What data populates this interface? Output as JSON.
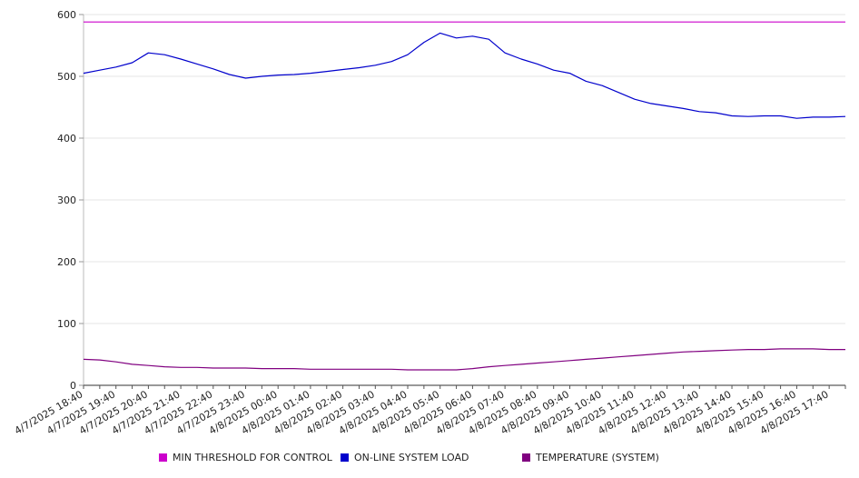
{
  "chart_data": {
    "type": "line",
    "title": "",
    "xlabel": "",
    "ylabel": "",
    "ylim": [
      0,
      600
    ],
    "y_ticks": [
      0,
      100,
      200,
      300,
      400,
      500,
      600
    ],
    "grid": "horizontal",
    "legend_position": "bottom",
    "x_tick_labels": [
      "4/7/2025 18:40",
      "4/7/2025 19:40",
      "4/7/2025 20:40",
      "4/7/2025 21:40",
      "4/7/2025 22:40",
      "4/7/2025 23:40",
      "4/8/2025 00:40",
      "4/8/2025 01:40",
      "4/8/2025 02:40",
      "4/8/2025 03:40",
      "4/8/2025 04:40",
      "4/8/2025 05:40",
      "4/8/2025 06:40",
      "4/8/2025 07:40",
      "4/8/2025 08:40",
      "4/8/2025 09:40",
      "4/8/2025 10:40",
      "4/8/2025 11:40",
      "4/8/2025 12:40",
      "4/8/2025 13:40",
      "4/8/2025 14:40",
      "4/8/2025 15:40",
      "4/8/2025 16:40",
      "4/8/2025 17:40"
    ],
    "x": [
      "4/7/2025 18:40",
      "4/7/2025 19:10",
      "4/7/2025 19:40",
      "4/7/2025 20:10",
      "4/7/2025 20:40",
      "4/7/2025 21:10",
      "4/7/2025 21:40",
      "4/7/2025 22:10",
      "4/7/2025 22:40",
      "4/7/2025 23:10",
      "4/7/2025 23:40",
      "4/8/2025 00:10",
      "4/8/2025 00:40",
      "4/8/2025 01:10",
      "4/8/2025 01:40",
      "4/8/2025 02:10",
      "4/8/2025 02:40",
      "4/8/2025 03:10",
      "4/8/2025 03:40",
      "4/8/2025 04:10",
      "4/8/2025 04:40",
      "4/8/2025 05:10",
      "4/8/2025 05:40",
      "4/8/2025 06:10",
      "4/8/2025 06:40",
      "4/8/2025 07:10",
      "4/8/2025 07:40",
      "4/8/2025 08:10",
      "4/8/2025 08:40",
      "4/8/2025 09:10",
      "4/8/2025 09:40",
      "4/8/2025 10:10",
      "4/8/2025 10:40",
      "4/8/2025 11:10",
      "4/8/2025 11:40",
      "4/8/2025 12:10",
      "4/8/2025 12:40",
      "4/8/2025 13:10",
      "4/8/2025 13:40",
      "4/8/2025 14:10",
      "4/8/2025 14:40",
      "4/8/2025 15:10",
      "4/8/2025 15:40",
      "4/8/2025 16:10",
      "4/8/2025 16:40",
      "4/8/2025 17:10",
      "4/8/2025 17:40",
      "4/8/2025 18:10"
    ],
    "series": [
      {
        "name": "MIN THRESHOLD FOR CONTROL",
        "color": "#cc00cc",
        "values": [
          588,
          588,
          588,
          588,
          588,
          588,
          588,
          588,
          588,
          588,
          588,
          588,
          588,
          588,
          588,
          588,
          588,
          588,
          588,
          588,
          588,
          588,
          588,
          588,
          588,
          588,
          588,
          588,
          588,
          588,
          588,
          588,
          588,
          588,
          588,
          588,
          588,
          588,
          588,
          588,
          588,
          588,
          588,
          588,
          588,
          588,
          588,
          588
        ]
      },
      {
        "name": "ON-LINE SYSTEM LOAD",
        "color": "#0000cc",
        "values": [
          505,
          510,
          515,
          522,
          538,
          535,
          528,
          520,
          512,
          503,
          497,
          500,
          502,
          503,
          505,
          508,
          511,
          514,
          518,
          524,
          535,
          555,
          570,
          562,
          565,
          560,
          538,
          528,
          520,
          510,
          505,
          492,
          485,
          474,
          463,
          456,
          452,
          448,
          443,
          441,
          436,
          435,
          436,
          436,
          432,
          434,
          434,
          435
        ]
      },
      {
        "name": "TEMPERATURE (SYSTEM)",
        "color": "#800080",
        "values": [
          42,
          41,
          38,
          34,
          32,
          30,
          29,
          29,
          28,
          28,
          28,
          27,
          27,
          27,
          26,
          26,
          26,
          26,
          26,
          26,
          25,
          25,
          25,
          25,
          27,
          30,
          32,
          34,
          36,
          38,
          40,
          42,
          44,
          46,
          48,
          50,
          52,
          54,
          55,
          56,
          57,
          58,
          58,
          59,
          59,
          59,
          58,
          58
        ]
      }
    ]
  }
}
